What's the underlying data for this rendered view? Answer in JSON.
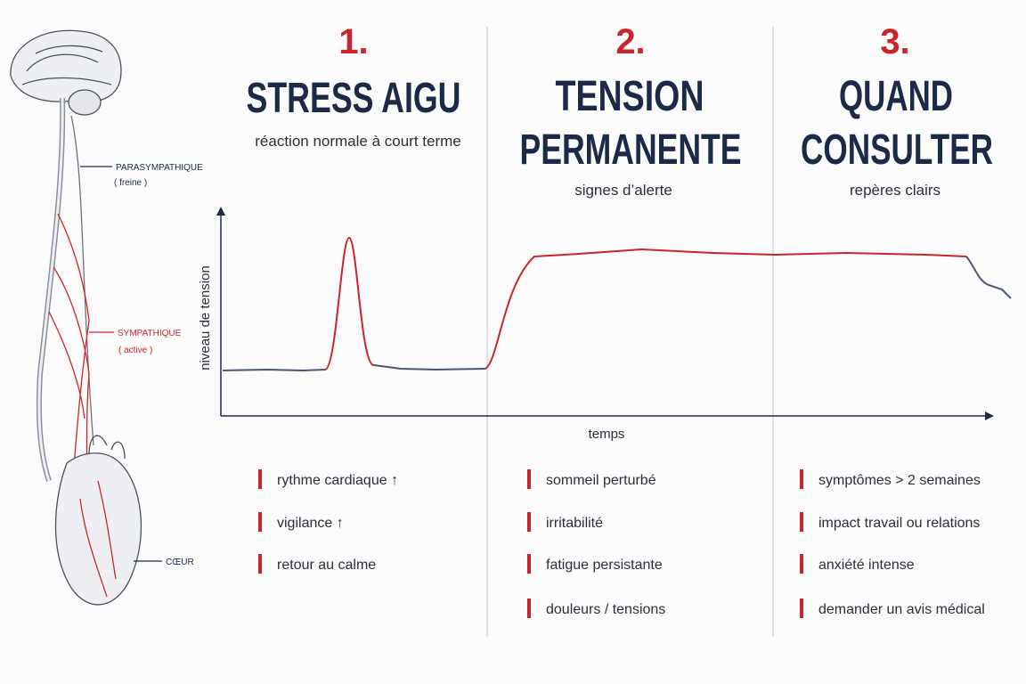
{
  "sections": [
    {
      "number": "1.",
      "title": [
        "STRESS AIGU"
      ],
      "subtitle": "réaction normale à court terme",
      "items": [
        "rythme cardiaque ↑",
        "vigilance ↑",
        "retour au calme"
      ]
    },
    {
      "number": "2.",
      "title": [
        "TENSION",
        "PERMANENTE"
      ],
      "subtitle": "signes d’alerte",
      "items": [
        "sommeil perturbé",
        "irritabilité",
        "fatigue persistante",
        "douleurs / tensions"
      ]
    },
    {
      "number": "3.",
      "title": [
        "QUAND",
        "CONSULTER"
      ],
      "subtitle": "repères clairs",
      "items": [
        "symptômes > 2 semaines",
        "impact travail ou relations",
        "anxiété intense",
        "demander un avis médical"
      ]
    }
  ],
  "chart": {
    "y_label": "niveau de tension",
    "x_label": "temps"
  },
  "anatomy": [
    {
      "label": "PARASYMPATHIQUE",
      "note": "( freine )"
    },
    {
      "label": "SYMPATHIQUE",
      "note": "( active )"
    },
    {
      "label": "CŒUR"
    }
  ]
}
